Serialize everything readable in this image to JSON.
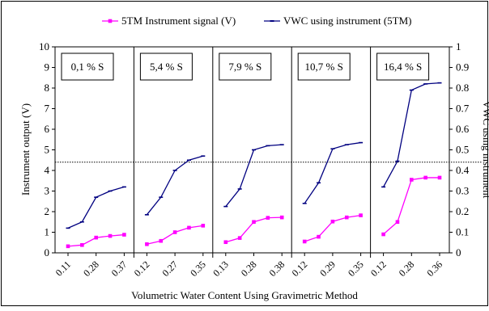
{
  "chart_data": {
    "type": "line",
    "xlabel": "Volumetric Water Content Using Gravimetric Method",
    "ylabel_left": "Instrument output (V)",
    "ylabel_right": "VWC using instrument",
    "ylim_left": [
      0,
      10
    ],
    "ylim_right": [
      0,
      1
    ],
    "yticks_left": [
      "0",
      "1",
      "2",
      "3",
      "4",
      "5",
      "6",
      "7",
      "8",
      "9",
      "10"
    ],
    "yticks_right": [
      "0",
      "0.1",
      "0.2",
      "0.3",
      "0.4",
      "0.5",
      "0.6",
      "0.7",
      "0.8",
      "0.9",
      "1"
    ],
    "reference_line_left": 4.4,
    "legend": {
      "placement": "top"
    },
    "colors": {
      "signal": "#ff00ff",
      "vwc": "#000080"
    },
    "panels": [
      {
        "label": "0,1 % S",
        "x_tick_labels": [
          "0.11",
          "0.28",
          "0.37"
        ],
        "signal": [
          0.32,
          0.38,
          0.74,
          0.82,
          0.88
        ],
        "vwc": [
          0.12,
          0.15,
          0.27,
          0.3,
          0.32
        ]
      },
      {
        "label": "5,4 %  S",
        "x_tick_labels": [
          "0.12",
          "0.27",
          "0.35"
        ],
        "signal": [
          0.42,
          0.58,
          1.0,
          1.22,
          1.32
        ],
        "vwc": [
          0.185,
          0.27,
          0.4,
          0.45,
          0.47
        ]
      },
      {
        "label": "7,9 % S",
        "x_tick_labels": [
          "0.13",
          "0.28",
          "0.38"
        ],
        "signal": [
          0.52,
          0.72,
          1.5,
          1.7,
          1.72
        ],
        "vwc": [
          0.225,
          0.31,
          0.5,
          0.52,
          0.525
        ]
      },
      {
        "label": "10,7 % S",
        "x_tick_labels": [
          "0.12",
          "0.29",
          "0.35"
        ],
        "signal": [
          0.55,
          0.78,
          1.52,
          1.72,
          1.82
        ],
        "vwc": [
          0.24,
          0.34,
          0.505,
          0.525,
          0.535
        ]
      },
      {
        "label": "16,4 %  S",
        "x_tick_labels": [
          "0.12",
          "0.28",
          "0.36"
        ],
        "signal": [
          0.9,
          1.5,
          3.55,
          3.65,
          3.65
        ],
        "vwc": [
          0.32,
          0.445,
          0.79,
          0.82,
          0.825
        ]
      }
    ],
    "series": [
      {
        "name": "5TM Instrument signal (V)",
        "axis": "left",
        "key": "signal"
      },
      {
        "name": "VWC using instrument (5TM)",
        "axis": "right",
        "key": "vwc"
      }
    ]
  }
}
